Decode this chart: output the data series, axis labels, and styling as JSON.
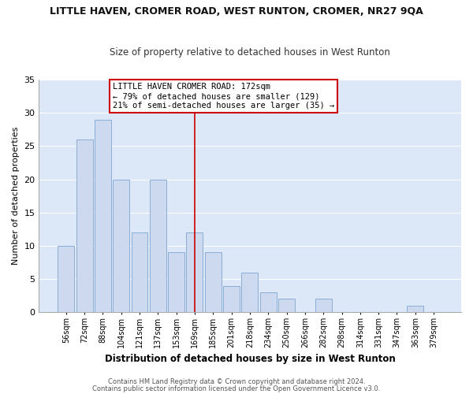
{
  "title": "LITTLE HAVEN, CROMER ROAD, WEST RUNTON, CROMER, NR27 9QA",
  "subtitle": "Size of property relative to detached houses in West Runton",
  "xlabel": "Distribution of detached houses by size in West Runton",
  "ylabel": "Number of detached properties",
  "bar_color": "#ccd9ee",
  "bar_edge_color": "#8aacd4",
  "plot_bg_color": "#dce8f8",
  "figure_bg_color": "#ffffff",
  "grid_color": "#ffffff",
  "bin_labels": [
    "56sqm",
    "72sqm",
    "88sqm",
    "104sqm",
    "121sqm",
    "137sqm",
    "153sqm",
    "169sqm",
    "185sqm",
    "201sqm",
    "218sqm",
    "234sqm",
    "250sqm",
    "266sqm",
    "282sqm",
    "298sqm",
    "314sqm",
    "331sqm",
    "347sqm",
    "363sqm",
    "379sqm"
  ],
  "bar_heights": [
    10,
    26,
    29,
    20,
    12,
    20,
    9,
    12,
    9,
    4,
    6,
    3,
    2,
    0,
    2,
    0,
    0,
    0,
    0,
    1,
    0
  ],
  "ylim": [
    0,
    35
  ],
  "yticks": [
    0,
    5,
    10,
    15,
    20,
    25,
    30,
    35
  ],
  "vline_x_index": 7,
  "vline_color": "#cc0000",
  "annotation_title": "LITTLE HAVEN CROMER ROAD: 172sqm",
  "annotation_line1": "← 79% of detached houses are smaller (129)",
  "annotation_line2": "21% of semi-detached houses are larger (35) →",
  "annotation_box_color": "#ffffff",
  "annotation_box_edge": "#cc0000",
  "footer1": "Contains HM Land Registry data © Crown copyright and database right 2024.",
  "footer2": "Contains public sector information licensed under the Open Government Licence v3.0."
}
